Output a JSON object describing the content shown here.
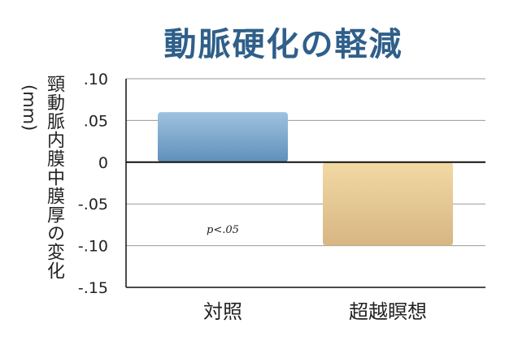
{
  "chart_data": {
    "type": "bar",
    "title": "動脈硬化の軽減",
    "ylabel": "頸動脈内膜中膜厚の変化",
    "ylabel_unit": "(mm)",
    "xlabel": "",
    "categories": [
      "対照",
      "超越瞑想"
    ],
    "values": [
      0.06,
      -0.1
    ],
    "ylim": [
      -0.15,
      0.1
    ],
    "yticks": [
      0.1,
      0.05,
      0,
      -0.05,
      -0.1,
      -0.15
    ],
    "ytick_labels": [
      ".10",
      ".05",
      "0",
      "-.05",
      "-.10",
      "-.15"
    ],
    "grid": true,
    "legend": "none",
    "annotation": "p<.05",
    "colors": {
      "bar_control_top": "#9fc3e0",
      "bar_control_bottom": "#5f8fba",
      "bar_tm_top": "#f2d9a3",
      "bar_tm_bottom": "#d7b683",
      "title": "#2f5f8a",
      "gridline": "#999999"
    }
  }
}
